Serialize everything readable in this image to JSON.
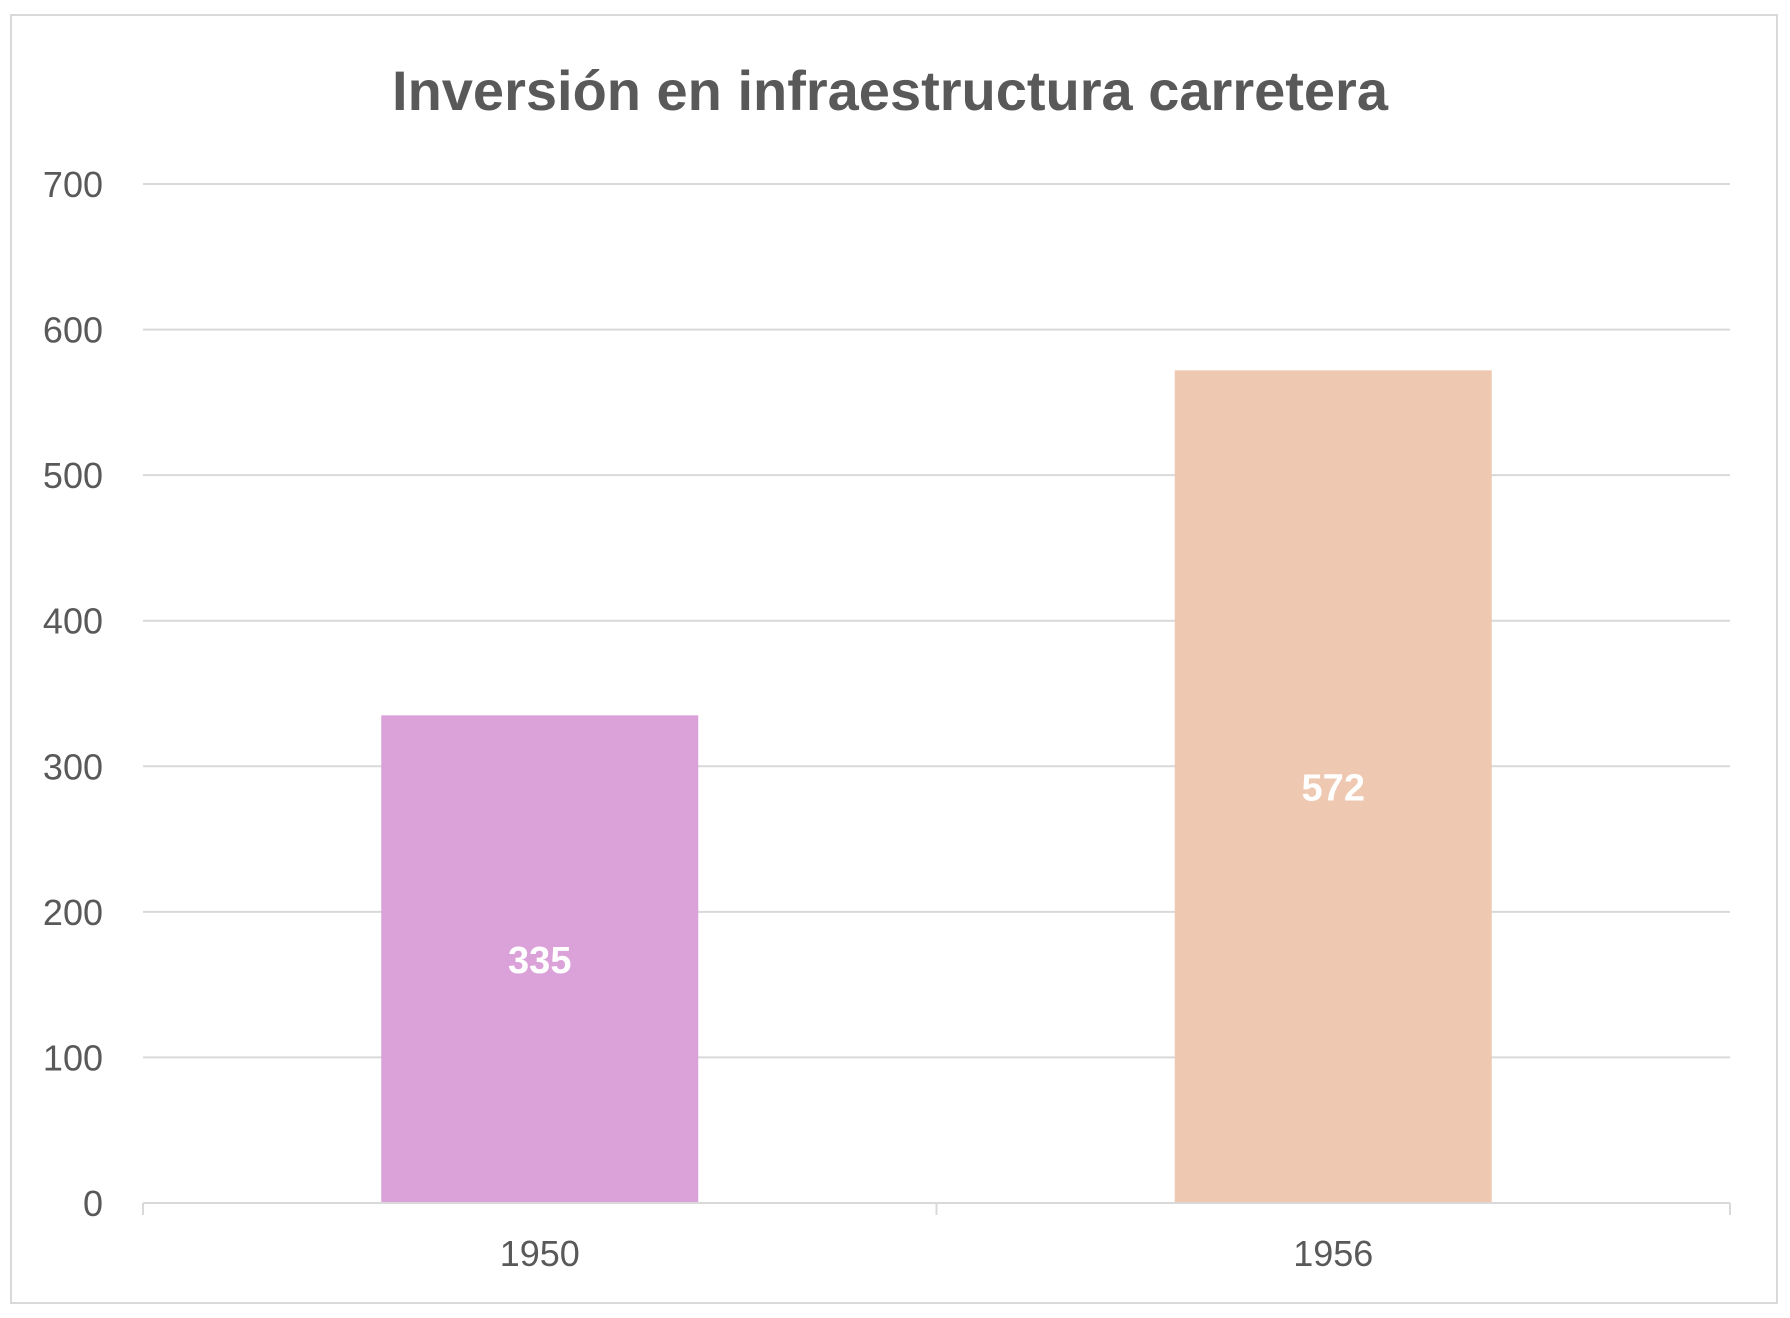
{
  "chart_data": {
    "type": "bar",
    "title": "Inversión en infraestructura carretera",
    "xlabel": "",
    "ylabel": "",
    "categories": [
      "1950",
      "1956"
    ],
    "values": [
      335,
      572
    ],
    "bar_colors": [
      "#dba2d9",
      "#eec8b1"
    ],
    "data_labels": [
      "335",
      "572"
    ],
    "ylim": [
      0,
      700
    ],
    "yticks": [
      0,
      100,
      200,
      300,
      400,
      500,
      600,
      700
    ],
    "ytick_labels": [
      "0",
      "100",
      "200",
      "300",
      "400",
      "500",
      "600",
      "700"
    ],
    "grid": true,
    "legend": "none",
    "colors": {
      "grid": "#d9d9d9",
      "axis": "#d9d9d9",
      "text": "#595959",
      "data_label": "#ffffff"
    }
  }
}
